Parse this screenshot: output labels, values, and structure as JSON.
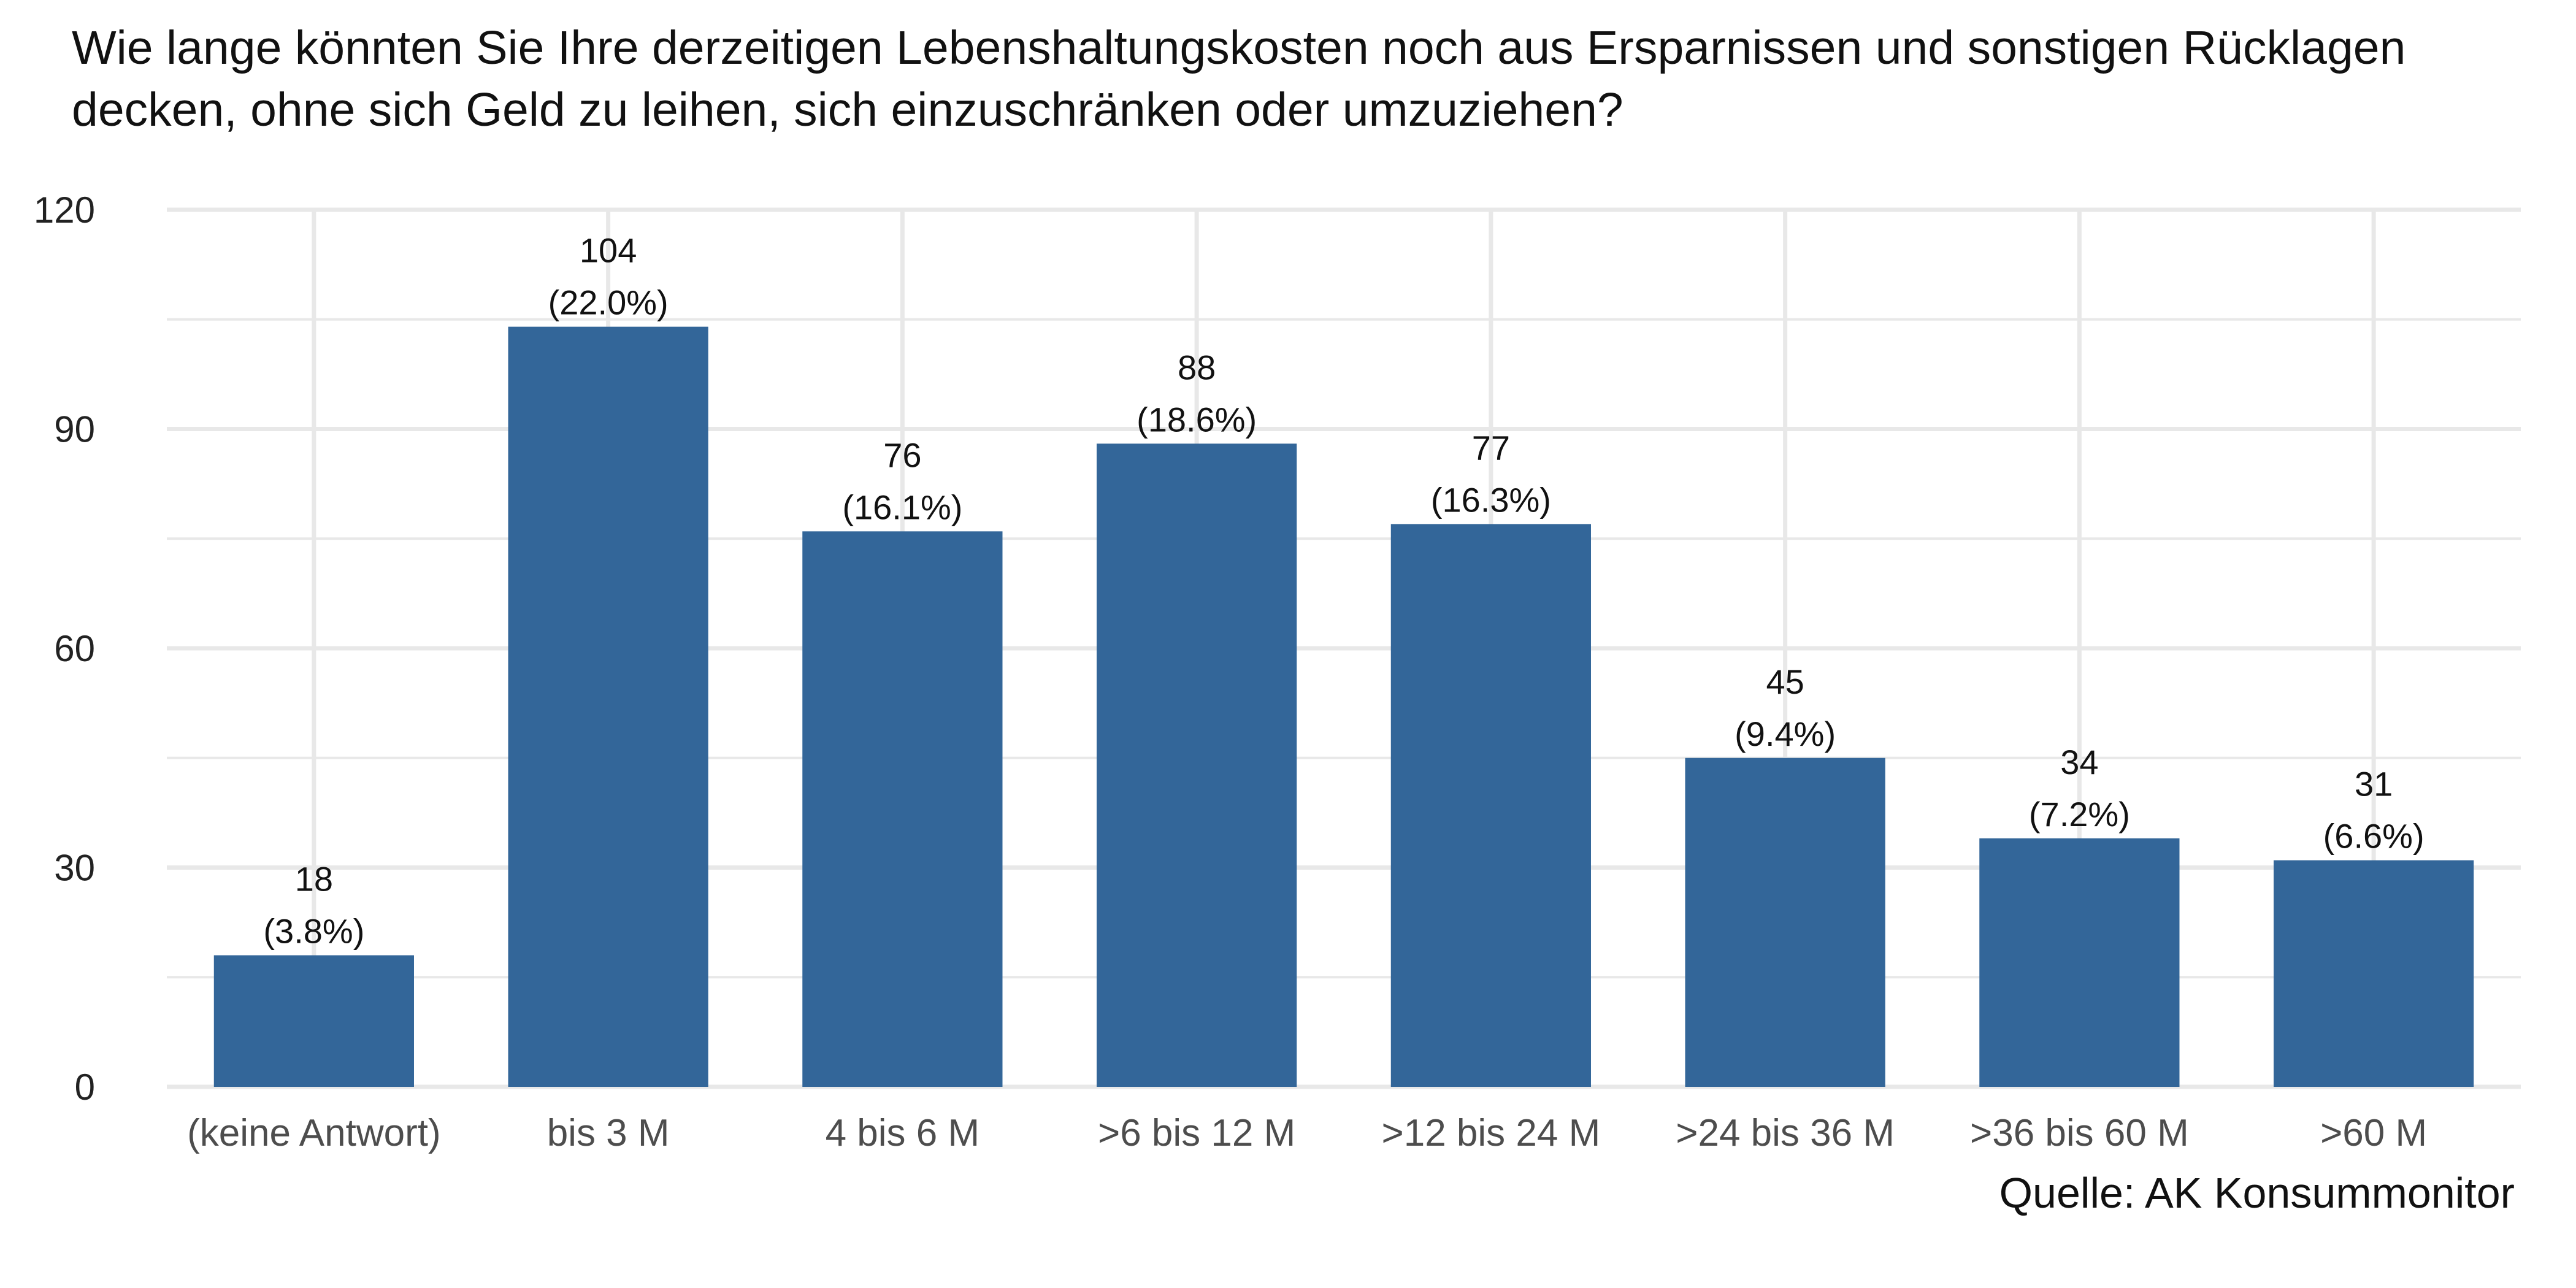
{
  "title": "Wie lange könnten Sie Ihre derzeitigen Lebenshaltungskosten noch aus Ersparnissen und sonstigen Rücklagen decken, ohne sich Geld zu leihen, sich einzuschränken oder umzuziehen?",
  "source": "Quelle: AK Konsummonitor",
  "colors": {
    "bar": "#336699",
    "grid": "#e8e8e8",
    "background": "#ffffff"
  },
  "chart_data": {
    "type": "bar",
    "title": "Wie lange könnten Sie Ihre derzeitigen Lebenshaltungskosten noch aus Ersparnissen und sonstigen Rücklagen decken, ohne sich Geld zu leihen, sich einzuschränken oder umzuziehen?",
    "xlabel": "",
    "ylabel": "",
    "categories": [
      "(keine Antwort)",
      "bis 3 M",
      "4 bis 6 M",
      ">6 bis 12 M",
      ">12 bis 24 M",
      ">24 bis 36 M",
      ">36 bis 60 M",
      ">60 M"
    ],
    "values": [
      18,
      104,
      76,
      88,
      77,
      45,
      34,
      31
    ],
    "value_labels": [
      "18",
      "104",
      "76",
      "88",
      "77",
      "45",
      "34",
      "31"
    ],
    "percent_labels": [
      "(3.8%)",
      "(22.0%)",
      "(16.1%)",
      "(18.6%)",
      "(16.3%)",
      "(9.4%)",
      "(7.2%)",
      "(6.6%)"
    ],
    "ylim": [
      0,
      120
    ],
    "yticks": [
      0,
      30,
      60,
      90,
      120
    ],
    "ytick_labels": [
      "0",
      "30",
      "60",
      "90",
      "120"
    ],
    "grid": true,
    "legend": "none"
  }
}
